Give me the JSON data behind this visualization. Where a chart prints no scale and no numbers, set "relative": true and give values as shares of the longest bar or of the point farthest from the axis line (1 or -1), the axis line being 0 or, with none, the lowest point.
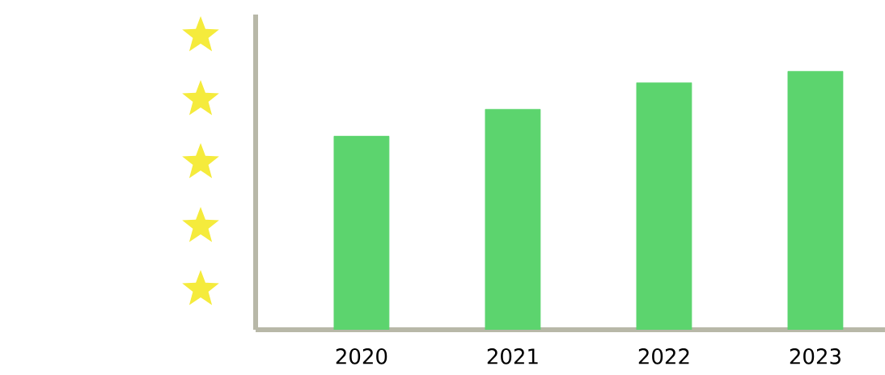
{
  "chart_data": {
    "type": "bar",
    "relative": true,
    "categories": [
      "2020",
      "2021",
      "2022",
      "2023"
    ],
    "values": [
      0.749,
      0.853,
      0.956,
      1
    ],
    "color": "#5cd46e"
  }
}
